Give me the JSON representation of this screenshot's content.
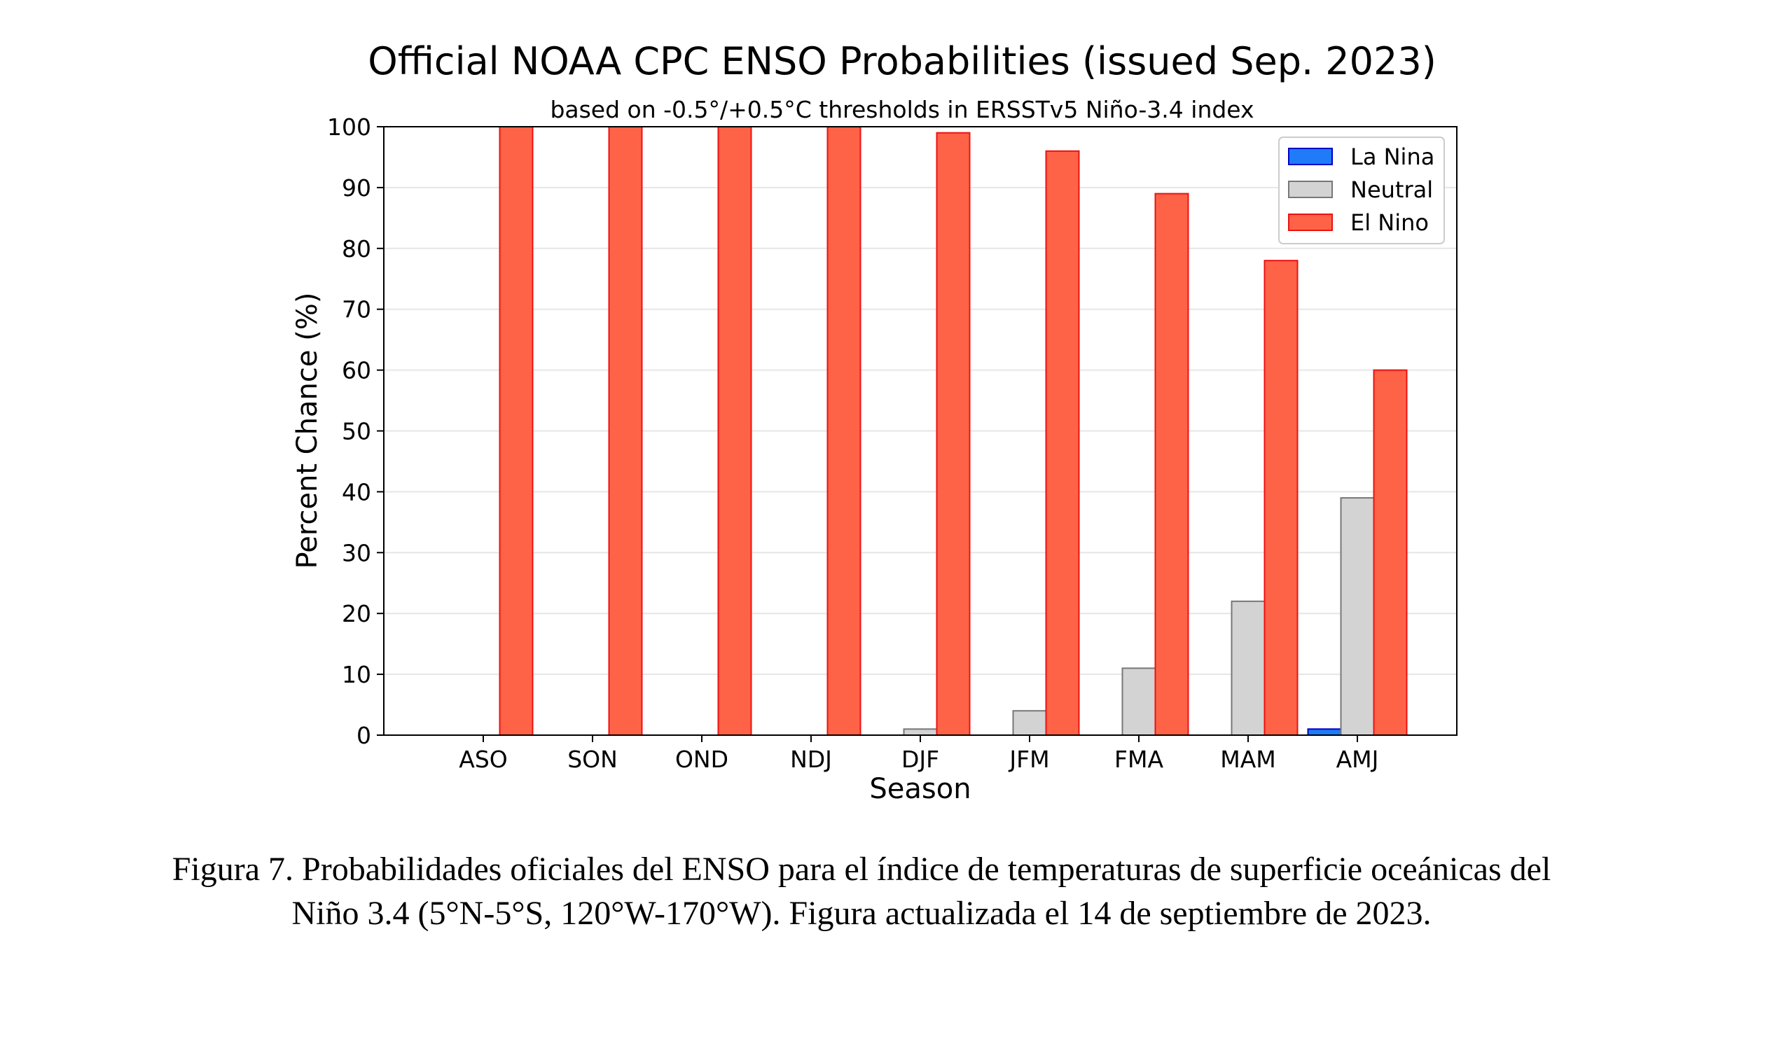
{
  "chart_data": {
    "type": "bar",
    "title": "Official NOAA CPC ENSO Probabilities (issued Sep. 2023)",
    "subtitle": "based on -0.5°/+0.5°C thresholds in ERSSTv5 Niño-3.4 index",
    "xlabel": "Season",
    "ylabel": "Percent Chance (%)",
    "ylim": [
      0,
      100
    ],
    "yticks": [
      "0",
      "10",
      "20",
      "30",
      "40",
      "50",
      "60",
      "70",
      "80",
      "90",
      "100"
    ],
    "grid": true,
    "legend_position": "top-right",
    "categories": [
      "ASO",
      "SON",
      "OND",
      "NDJ",
      "DJF",
      "JFM",
      "FMA",
      "MAM",
      "AMJ"
    ],
    "series": [
      {
        "name": "La Nina",
        "color": "#1f7bf7",
        "edge": "#0000cc",
        "values": [
          0,
          0,
          0,
          0,
          0,
          0,
          0,
          0,
          1
        ]
      },
      {
        "name": "Neutral",
        "color": "#d3d3d3",
        "edge": "#777777",
        "values": [
          0,
          0,
          0,
          0,
          1,
          4,
          11,
          22,
          39
        ]
      },
      {
        "name": "El Nino",
        "color": "#ff6347",
        "edge": "#ee1111",
        "values": [
          100,
          100,
          100,
          100,
          99,
          96,
          89,
          78,
          60
        ]
      }
    ]
  },
  "caption": {
    "line1": "Figura 7. Probabilidades oficiales del ENSO para el índice de temperaturas de superficie oceánicas del",
    "line2": "Niño 3.4 (5°N-5°S, 120°W-170°W). Figura actualizada el 14 de septiembre de 2023."
  }
}
